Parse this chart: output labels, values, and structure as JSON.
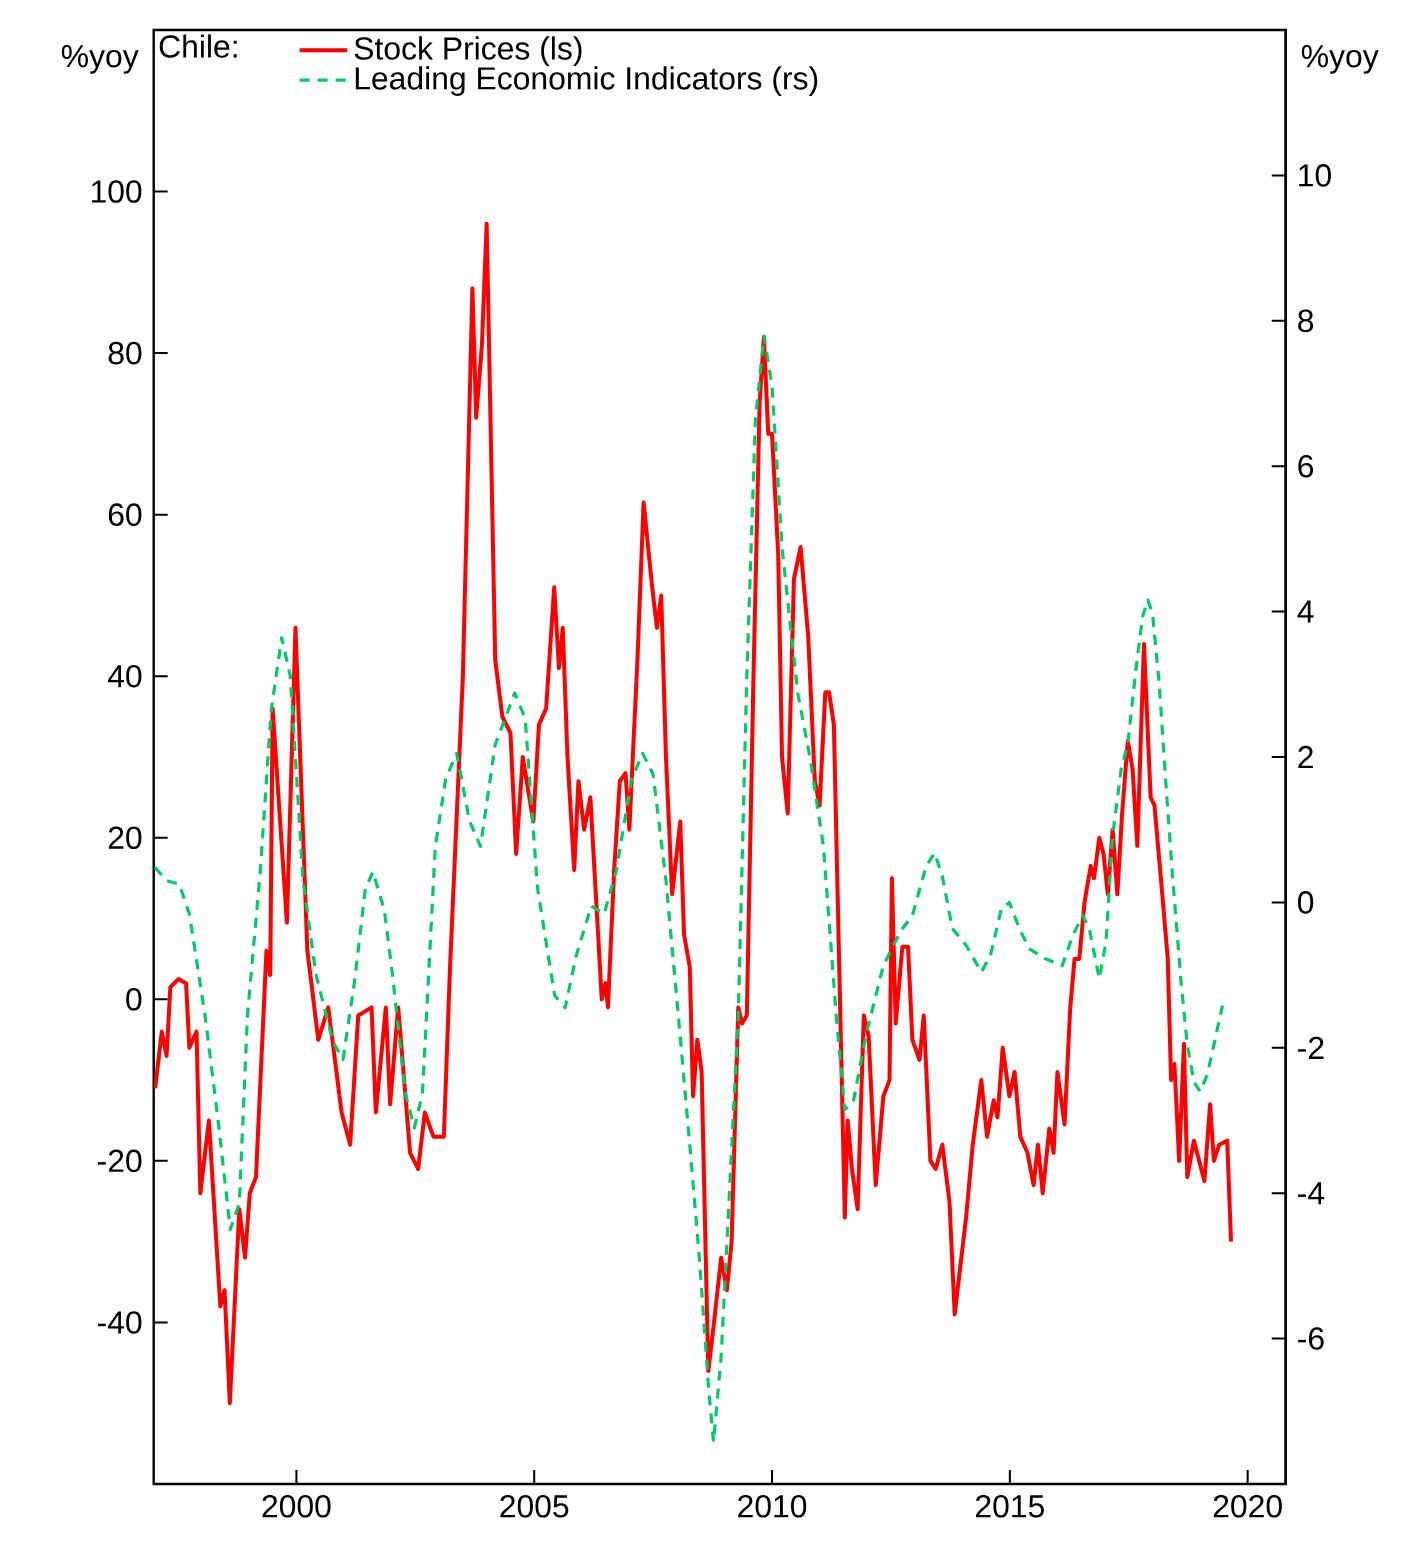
{
  "chart_data": {
    "type": "line",
    "legend_title": "Chile:",
    "legend": "top left",
    "ylabel": "%yoy",
    "y2label": "%yoy",
    "xlim": [
      1997,
      2020.8
    ],
    "xticks": [
      2000,
      2005,
      2010,
      2015,
      2020
    ],
    "ylim": [
      -60,
      120
    ],
    "yticks": [
      -40,
      -20,
      0,
      20,
      40,
      60,
      80,
      100
    ],
    "y2lim": [
      -8,
      12
    ],
    "y2ticks": [
      -6,
      -4,
      -2,
      0,
      2,
      4,
      6,
      8,
      10
    ],
    "series": [
      {
        "name": "Stock Prices (ls)",
        "color": "#ff0000",
        "axis": "y",
        "line_style": "solid",
        "x": [
          1997.03,
          1997.17,
          1997.27,
          1997.35,
          1997.52,
          1997.68,
          1997.75,
          1997.9,
          1997.98,
          1998.16,
          1998.4,
          1998.49,
          1998.6,
          1998.8,
          1998.92,
          1999.02,
          1999.15,
          1999.37,
          1999.45,
          1999.5,
          1999.8,
          1999.98,
          2000.23,
          2000.46,
          2000.67,
          2000.95,
          2001.13,
          2001.3,
          2001.58,
          2001.67,
          2001.88,
          2001.97,
          2002.14,
          2002.39,
          2002.56,
          2002.7,
          2002.88,
          2003.1,
          2003.23,
          2003.5,
          2003.7,
          2003.78,
          2003.9,
          2004.0,
          2004.18,
          2004.33,
          2004.5,
          2004.62,
          2004.76,
          2004.98,
          2005.1,
          2005.25,
          2005.42,
          2005.52,
          2005.6,
          2005.7,
          2005.84,
          2005.93,
          2006.05,
          2006.18,
          2006.42,
          2006.5,
          2006.55,
          2006.68,
          2006.8,
          2006.92,
          2007.0,
          2007.17,
          2007.3,
          2007.48,
          2007.58,
          2007.67,
          2007.77,
          2007.9,
          2008.07,
          2008.15,
          2008.27,
          2008.34,
          2008.43,
          2008.52,
          2008.66,
          2008.78,
          2008.93,
          2009.05,
          2009.15,
          2009.29,
          2009.37,
          2009.47,
          2009.61,
          2009.74,
          2009.83,
          2009.92,
          2010.0,
          2010.13,
          2010.21,
          2010.33,
          2010.46,
          2010.6,
          2010.76,
          2010.9,
          2011.0,
          2011.12,
          2011.2,
          2011.3,
          2011.53,
          2011.59,
          2011.68,
          2011.8,
          2011.93,
          2012.03,
          2012.18,
          2012.34,
          2012.47,
          2012.52,
          2012.6,
          2012.74,
          2012.86,
          2012.95,
          2013.1,
          2013.19,
          2013.33,
          2013.44,
          2013.58,
          2013.73,
          2013.84,
          2014.08,
          2014.22,
          2014.4,
          2014.52,
          2014.66,
          2014.74,
          2014.85,
          2014.99,
          2015.1,
          2015.22,
          2015.37,
          2015.5,
          2015.59,
          2015.69,
          2015.83,
          2015.92,
          2016.0,
          2016.15,
          2016.27,
          2016.36,
          2016.46,
          2016.57,
          2016.7,
          2016.77,
          2016.88,
          2016.97,
          2017.06,
          2017.16,
          2017.26,
          2017.36,
          2017.48,
          2017.58,
          2017.68,
          2017.82,
          2017.96,
          2018.04,
          2018.19,
          2018.32,
          2018.39,
          2018.46,
          2018.56,
          2018.66,
          2018.73,
          2018.87,
          2018.98,
          2019.09,
          2019.21,
          2019.29,
          2019.4,
          2019.57,
          2019.65
        ],
        "values": [
          -11,
          -4,
          -7,
          1.5,
          2.5,
          2,
          -6,
          -4,
          -24,
          -15,
          -38,
          -36,
          -50,
          -26,
          -32,
          -24,
          -22,
          6,
          3,
          36,
          9.5,
          46,
          6,
          -5,
          -1,
          -14,
          -18,
          -2,
          -1,
          -14,
          -1,
          -13,
          -1,
          -19,
          -21,
          -14,
          -17,
          -17,
          4,
          40,
          88,
          72,
          81,
          96,
          42,
          35,
          33,
          18,
          30,
          22,
          34,
          36,
          51,
          41,
          46,
          30,
          16,
          27,
          21,
          25,
          0,
          2,
          -1,
          16,
          27,
          28,
          21,
          42,
          61.5,
          51,
          46,
          50,
          30,
          13,
          22,
          8,
          4,
          -12,
          -5,
          -9,
          -46,
          -40,
          -32,
          -36,
          -30,
          -1,
          -3,
          -2,
          40,
          74,
          82,
          70,
          70,
          55,
          30,
          23,
          52,
          56,
          45,
          27,
          24,
          38,
          38,
          34,
          -27,
          -15,
          -21,
          -26,
          -2,
          -4.5,
          -23,
          -12,
          -10,
          15,
          -3,
          6.5,
          6.5,
          -5,
          -7.5,
          -2,
          -20,
          -21,
          -18,
          -25,
          -39,
          -27,
          -18,
          -10,
          -17,
          -12.5,
          -14.6,
          -6,
          -12,
          -9,
          -17,
          -19,
          -23,
          -18,
          -24,
          -16,
          -19,
          -9,
          -15.5,
          -1,
          5,
          5,
          12,
          16.5,
          15,
          20,
          18,
          13,
          21,
          13,
          23,
          32,
          28.5,
          19,
          44,
          25,
          24,
          14,
          5,
          -10,
          -8,
          -20,
          -5.5,
          -22,
          -17.5,
          -20,
          -22.5,
          -13,
          -20,
          -18,
          -17.5,
          -30
        ]
      },
      {
        "name": "Leading Economic Indicators (rs)",
        "color": "#00cc66",
        "axis": "y2",
        "line_style": "dashed",
        "x": [
          1997.03,
          1997.27,
          1997.54,
          1997.75,
          1998.08,
          1998.35,
          1998.61,
          1998.8,
          1998.97,
          1999.24,
          1999.47,
          1999.69,
          1999.87,
          2000.14,
          2000.41,
          2000.77,
          2000.98,
          2001.22,
          2001.45,
          2001.61,
          2001.85,
          2002.02,
          2002.29,
          2002.48,
          2002.65,
          2002.92,
          2003.14,
          2003.37,
          2003.64,
          2003.87,
          2004.18,
          2004.59,
          2004.81,
          2005.07,
          2005.43,
          2005.65,
          2005.88,
          2006.2,
          2006.47,
          2006.72,
          2007.05,
          2007.28,
          2007.5,
          2007.77,
          2008.03,
          2008.3,
          2008.48,
          2008.67,
          2008.77,
          2008.93,
          2009.11,
          2009.29,
          2009.47,
          2009.65,
          2009.83,
          2010.0,
          2010.21,
          2010.54,
          2010.81,
          2011.08,
          2011.35,
          2011.53,
          2011.71,
          2011.98,
          2012.34,
          2012.7,
          2012.95,
          2013.24,
          2013.42,
          2013.58,
          2013.79,
          2014.08,
          2014.4,
          2014.59,
          2014.82,
          2014.99,
          2015.2,
          2015.41,
          2015.76,
          2016.1,
          2016.32,
          2016.53,
          2016.67,
          2016.88,
          2017.02,
          2017.16,
          2017.34,
          2017.48,
          2017.65,
          2017.79,
          2017.9,
          2018.0,
          2018.14,
          2018.28,
          2018.42,
          2018.6,
          2018.73,
          2018.87,
          2019.0,
          2019.15,
          2019.29,
          2019.47
        ],
        "values": [
          0.48,
          0.3,
          0.25,
          -0.16,
          -1.56,
          -2.98,
          -4.5,
          -4.14,
          -1.56,
          0.42,
          2.64,
          3.64,
          3.12,
          0.3,
          -0.99,
          -1.92,
          -2.16,
          -1.1,
          0.19,
          0.42,
          -0.11,
          -0.99,
          -2.63,
          -3.1,
          -2.63,
          0.77,
          1.7,
          2.05,
          1.12,
          0.77,
          2.17,
          2.88,
          2.53,
          0.19,
          -1.28,
          -1.45,
          -0.74,
          -0.05,
          -0.16,
          0.42,
          1.7,
          2.05,
          1.76,
          0.3,
          -1.56,
          -3.56,
          -4.96,
          -6.71,
          -7.42,
          -6.25,
          -3.92,
          -1.56,
          3.12,
          6.63,
          7.79,
          7.1,
          4.88,
          2.88,
          1.95,
          0.77,
          -1.56,
          -2.85,
          -2.74,
          -1.81,
          -0.87,
          -0.4,
          -0.18,
          0.5,
          0.68,
          0.36,
          -0.36,
          -0.59,
          -0.96,
          -0.73,
          -0.09,
          0,
          -0.36,
          -0.64,
          -0.78,
          -0.87,
          -0.46,
          -0.18,
          -0.36,
          -1.05,
          -0.55,
          0.91,
          1.83,
          2.19,
          3.2,
          3.93,
          4.16,
          3.97,
          3.01,
          1.64,
          0.36,
          -1.1,
          -1.96,
          -2.47,
          -2.6,
          -2.37,
          -1.96,
          -1.42
        ]
      }
    ]
  }
}
